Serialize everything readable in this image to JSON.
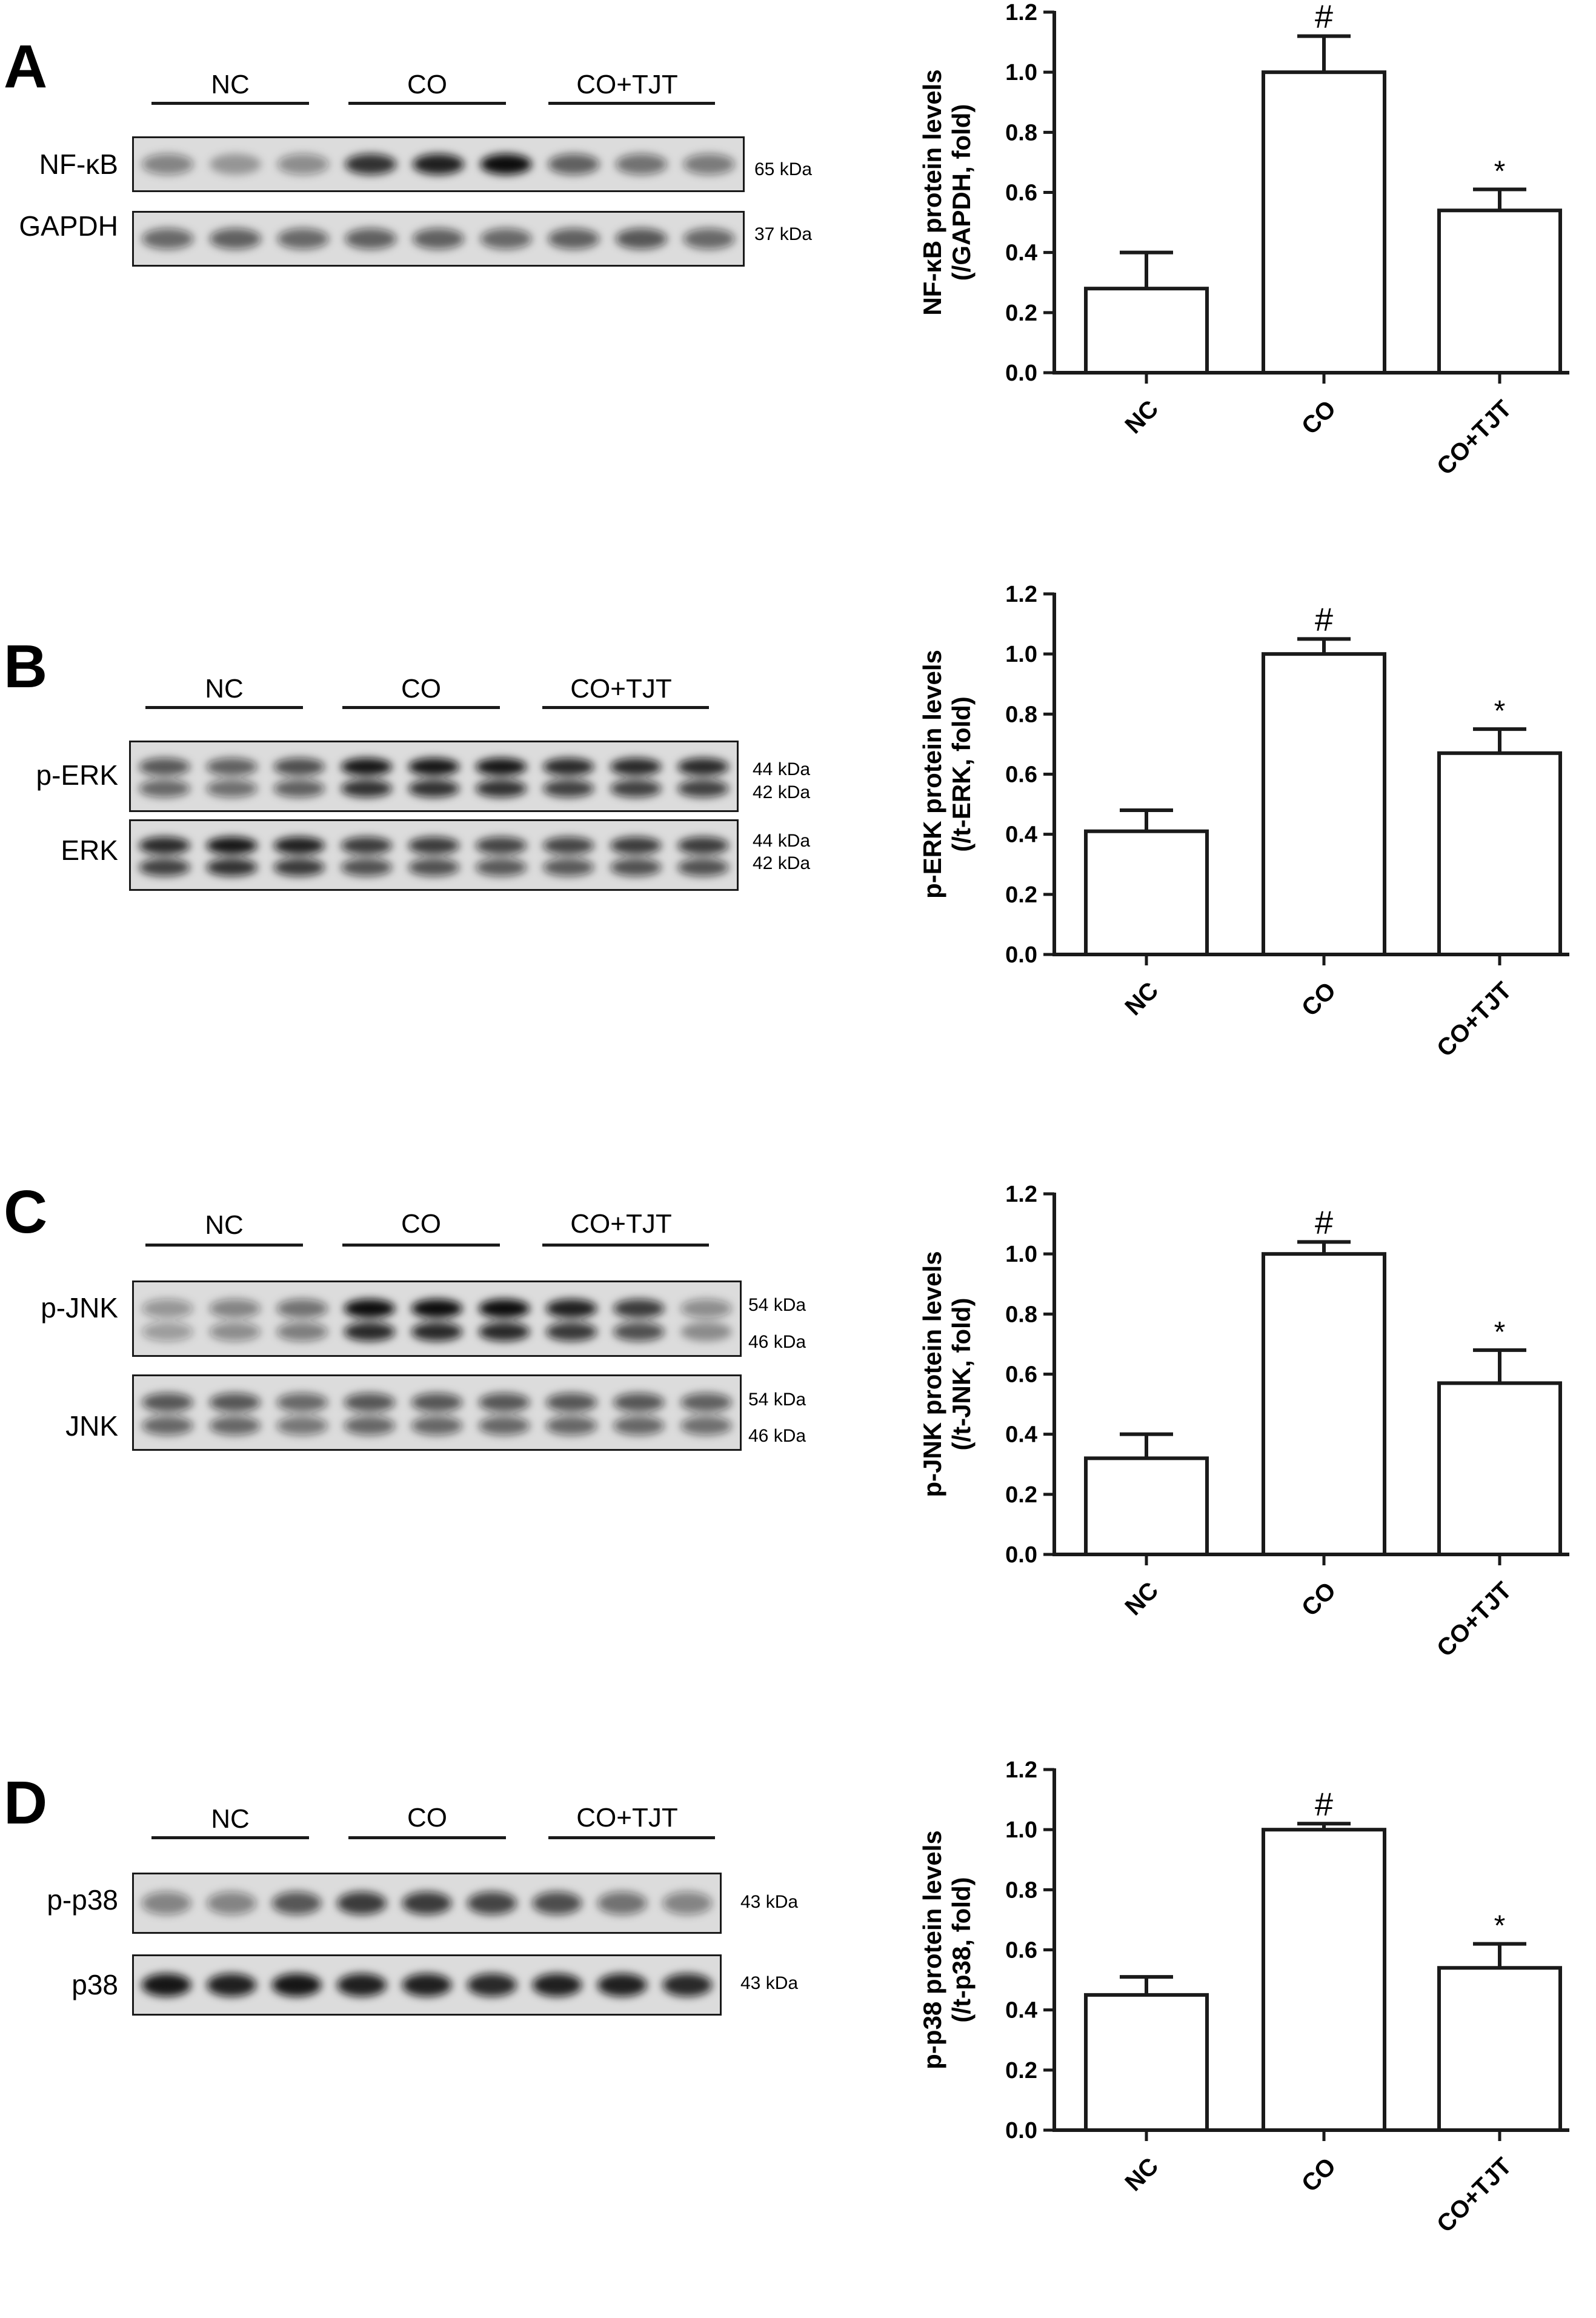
{
  "panels": [
    {
      "letter": "A",
      "groups": [
        "NC",
        "CO",
        "CO+TJT"
      ],
      "blots": [
        {
          "label": "NF-κB",
          "kda": [
            "65 kDa"
          ],
          "intensities": [
            0.35,
            0.2,
            0.3,
            0.8,
            0.9,
            1.0,
            0.55,
            0.45,
            0.4
          ],
          "bands": 1
        },
        {
          "label": "GAPDH",
          "kda": [
            "37 kDa"
          ],
          "intensities": [
            0.5,
            0.55,
            0.5,
            0.55,
            0.55,
            0.5,
            0.55,
            0.6,
            0.5
          ],
          "bands": 1
        }
      ],
      "chart_data": {
        "type": "bar",
        "categories": [
          "NC",
          "CO",
          "CO+TJT"
        ],
        "values": [
          0.28,
          1.0,
          0.54
        ],
        "errors": [
          0.12,
          0.12,
          0.07
        ],
        "annotations": [
          "",
          "#",
          "*"
        ],
        "ylabel_line1": "NF-κB protein levels",
        "ylabel_line2": "(/GAPDH, fold)",
        "yticks": [
          "0.0",
          "0.2",
          "0.4",
          "0.6",
          "0.8",
          "1.0",
          "1.2"
        ],
        "ylim": [
          0,
          1.2
        ]
      }
    },
    {
      "letter": "B",
      "groups": [
        "NC",
        "CO",
        "CO+TJT"
      ],
      "blots": [
        {
          "label": "p-ERK",
          "kda": [
            "44 kDa",
            "42 kDa"
          ],
          "intensities": [
            0.6,
            0.55,
            0.65,
            0.95,
            0.95,
            0.95,
            0.85,
            0.85,
            0.85
          ],
          "bands": 2
        },
        {
          "label": "ERK",
          "kda": [
            "44 kDa",
            "42 kDa"
          ],
          "intensities": [
            0.85,
            0.95,
            0.9,
            0.75,
            0.75,
            0.7,
            0.7,
            0.75,
            0.75
          ],
          "bands": 2
        }
      ],
      "chart_data": {
        "type": "bar",
        "categories": [
          "NC",
          "CO",
          "CO+TJT"
        ],
        "values": [
          0.41,
          1.0,
          0.67
        ],
        "errors": [
          0.07,
          0.05,
          0.08
        ],
        "annotations": [
          "",
          "#",
          "*"
        ],
        "ylabel_line1": "p-ERK protein levels",
        "ylabel_line2": "(/t-ERK, fold)",
        "yticks": [
          "0.0",
          "0.2",
          "0.4",
          "0.6",
          "0.8",
          "1.0",
          "1.2"
        ],
        "ylim": [
          0,
          1.2
        ]
      }
    },
    {
      "letter": "C",
      "groups": [
        "NC",
        "CO",
        "CO+TJT"
      ],
      "blots": [
        {
          "label": "p-JNK",
          "kda": [
            "54 kDa",
            "46 kDa"
          ],
          "intensities": [
            0.25,
            0.35,
            0.45,
            1.0,
            1.0,
            1.0,
            0.9,
            0.75,
            0.3
          ],
          "bands": 2
        },
        {
          "label": "JNK",
          "kda": [
            "54 kDa",
            "46 kDa"
          ],
          "intensities": [
            0.6,
            0.6,
            0.5,
            0.6,
            0.6,
            0.6,
            0.6,
            0.6,
            0.55
          ],
          "bands": 2
        }
      ],
      "chart_data": {
        "type": "bar",
        "categories": [
          "NC",
          "CO",
          "CO+TJT"
        ],
        "values": [
          0.32,
          1.0,
          0.57
        ],
        "errors": [
          0.08,
          0.04,
          0.11
        ],
        "annotations": [
          "",
          "#",
          "*"
        ],
        "ylabel_line1": "p-JNK protein levels",
        "ylabel_line2": "(/t-JNK, fold)",
        "yticks": [
          "0.0",
          "0.2",
          "0.4",
          "0.6",
          "0.8",
          "1.0",
          "1.2"
        ],
        "ylim": [
          0,
          1.2
        ]
      }
    },
    {
      "letter": "D",
      "groups": [
        "NC",
        "CO",
        "CO+TJT"
      ],
      "blots": [
        {
          "label": "p-p38",
          "kda": [
            "43 kDa"
          ],
          "intensities": [
            0.35,
            0.35,
            0.6,
            0.75,
            0.75,
            0.7,
            0.65,
            0.45,
            0.35
          ],
          "bands": 1
        },
        {
          "label": "p38",
          "kda": [
            "43 kDa"
          ],
          "intensities": [
            0.95,
            0.9,
            0.95,
            0.9,
            0.9,
            0.85,
            0.9,
            0.9,
            0.85
          ],
          "bands": 1
        }
      ],
      "chart_data": {
        "type": "bar",
        "categories": [
          "NC",
          "CO",
          "CO+TJT"
        ],
        "values": [
          0.45,
          1.0,
          0.54
        ],
        "errors": [
          0.06,
          0.02,
          0.08
        ],
        "annotations": [
          "",
          "#",
          "*"
        ],
        "ylabel_line1": "p-p38 protein levels",
        "ylabel_line2": "(/t-p38, fold)",
        "yticks": [
          "0.0",
          "0.2",
          "0.4",
          "0.6",
          "0.8",
          "1.0",
          "1.2"
        ],
        "ylim": [
          0,
          1.2
        ]
      }
    }
  ]
}
